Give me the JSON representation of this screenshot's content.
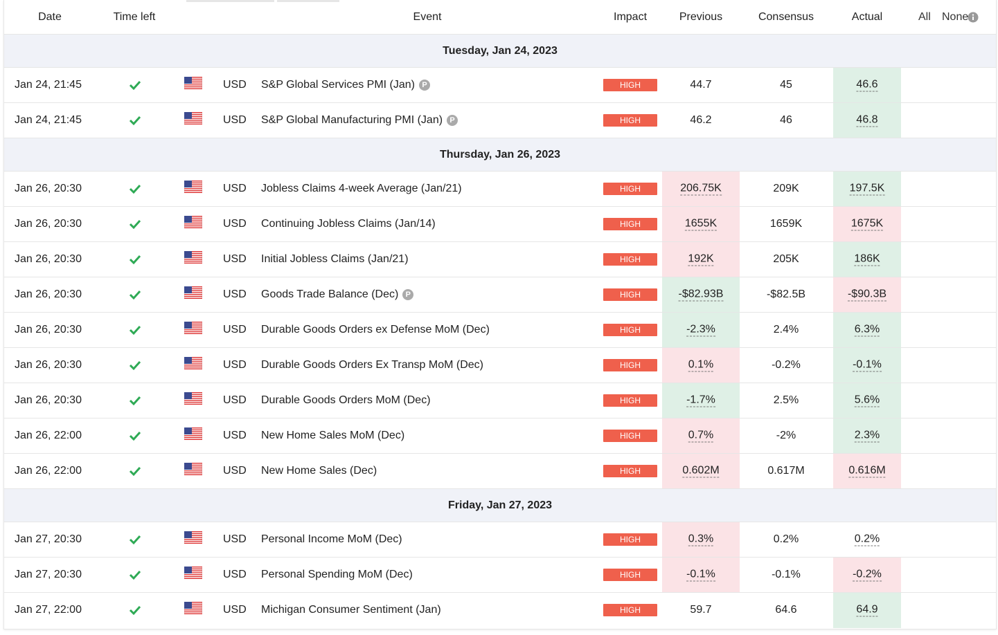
{
  "header": {
    "columns": [
      "Date",
      "Time left",
      "Event",
      "Impact",
      "Previous",
      "Consensus",
      "Actual"
    ],
    "filter_all": "All",
    "filter_none": "None"
  },
  "groups": [
    {
      "title": "Tuesday, Jan 24, 2023",
      "rows": [
        {
          "date": "Jan 24, 21:45",
          "currency": "USD",
          "event": "S&P Global Services PMI (Jan)",
          "badge": "P",
          "impact": "HIGH",
          "previous": "44.7",
          "consensus": "45",
          "actual": "46.6",
          "actual_bg": "#dff0e6"
        },
        {
          "date": "Jan 24, 21:45",
          "currency": "USD",
          "event": "S&P Global Manufacturing PMI (Jan)",
          "badge": "P",
          "impact": "HIGH",
          "previous": "46.2",
          "consensus": "46",
          "actual": "46.8",
          "actual_bg": "#dff0e6"
        }
      ]
    },
    {
      "title": "Thursday, Jan 26, 2023",
      "rows": [
        {
          "date": "Jan 26, 20:30",
          "currency": "USD",
          "event": "Jobless Claims 4-week Average (Jan/21)",
          "impact": "HIGH",
          "previous": "206.75K",
          "previous_bg": "#fbe3e6",
          "consensus": "209K",
          "actual": "197.5K",
          "actual_bg": "#dff0e6"
        },
        {
          "date": "Jan 26, 20:30",
          "currency": "USD",
          "event": "Continuing Jobless Claims (Jan/14)",
          "impact": "HIGH",
          "previous": "1655K",
          "previous_bg": "#fbe3e6",
          "consensus": "1659K",
          "actual": "1675K",
          "actual_bg": "#fbe3e6"
        },
        {
          "date": "Jan 26, 20:30",
          "currency": "USD",
          "event": "Initial Jobless Claims (Jan/21)",
          "impact": "HIGH",
          "previous": "192K",
          "previous_bg": "#fbe3e6",
          "consensus": "205K",
          "actual": "186K",
          "actual_bg": "#dff0e6"
        },
        {
          "date": "Jan 26, 20:30",
          "currency": "USD",
          "event": "Goods Trade Balance (Dec)",
          "badge": "P",
          "impact": "HIGH",
          "previous": "-$82.93B",
          "previous_bg": "#dff0e6",
          "consensus": "-$82.5B",
          "actual": "-$90.3B",
          "actual_bg": "#fbe3e6"
        },
        {
          "date": "Jan 26, 20:30",
          "currency": "USD",
          "event": "Durable Goods Orders ex Defense MoM (Dec)",
          "impact": "HIGH",
          "previous": "-2.3%",
          "previous_bg": "#dff0e6",
          "consensus": "2.4%",
          "actual": "6.3%",
          "actual_bg": "#dff0e6"
        },
        {
          "date": "Jan 26, 20:30",
          "currency": "USD",
          "event": "Durable Goods Orders Ex Transp MoM (Dec)",
          "impact": "HIGH",
          "previous": "0.1%",
          "previous_bg": "#fbe3e6",
          "consensus": "-0.2%",
          "actual": "-0.1%",
          "actual_bg": "#dff0e6"
        },
        {
          "date": "Jan 26, 20:30",
          "currency": "USD",
          "event": "Durable Goods Orders MoM (Dec)",
          "impact": "HIGH",
          "previous": "-1.7%",
          "previous_bg": "#dff0e6",
          "consensus": "2.5%",
          "actual": "5.6%",
          "actual_bg": "#dff0e6"
        },
        {
          "date": "Jan 26, 22:00",
          "currency": "USD",
          "event": "New Home Sales MoM (Dec)",
          "impact": "HIGH",
          "previous": "0.7%",
          "previous_bg": "#fbe3e6",
          "consensus": "-2%",
          "actual": "2.3%",
          "actual_bg": "#dff0e6"
        },
        {
          "date": "Jan 26, 22:00",
          "currency": "USD",
          "event": "New Home Sales (Dec)",
          "impact": "HIGH",
          "previous": "0.602M",
          "previous_bg": "#fbe3e6",
          "consensus": "0.617M",
          "actual": "0.616M",
          "actual_bg": "#fbe3e6"
        }
      ]
    },
    {
      "title": "Friday, Jan 27, 2023",
      "rows": [
        {
          "date": "Jan 27, 20:30",
          "currency": "USD",
          "event": "Personal Income MoM (Dec)",
          "impact": "HIGH",
          "previous": "0.3%",
          "previous_bg": "#fbe3e6",
          "consensus": "0.2%",
          "actual": "0.2%"
        },
        {
          "date": "Jan 27, 20:30",
          "currency": "USD",
          "event": "Personal Spending MoM (Dec)",
          "impact": "HIGH",
          "previous": "-0.1%",
          "previous_bg": "#fbe3e6",
          "consensus": "-0.1%",
          "actual": "-0.2%",
          "actual_bg": "#fbe3e6"
        },
        {
          "date": "Jan 27, 22:00",
          "currency": "USD",
          "event": "Michigan Consumer Sentiment (Jan)",
          "impact": "HIGH",
          "previous": "59.7",
          "consensus": "64.6",
          "actual": "64.9",
          "actual_bg": "#dff0e6"
        }
      ]
    }
  ]
}
